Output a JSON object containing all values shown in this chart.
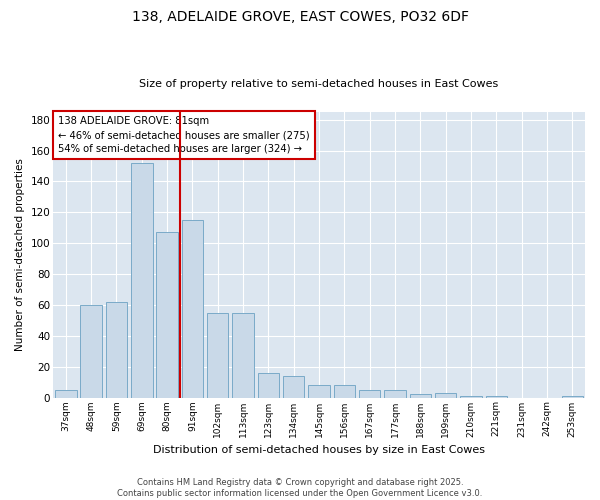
{
  "title": "138, ADELAIDE GROVE, EAST COWES, PO32 6DF",
  "subtitle": "Size of property relative to semi-detached houses in East Cowes",
  "xlabel": "Distribution of semi-detached houses by size in East Cowes",
  "ylabel": "Number of semi-detached properties",
  "categories": [
    "37sqm",
    "48sqm",
    "59sqm",
    "69sqm",
    "80sqm",
    "91sqm",
    "102sqm",
    "113sqm",
    "123sqm",
    "134sqm",
    "145sqm",
    "156sqm",
    "167sqm",
    "177sqm",
    "188sqm",
    "199sqm",
    "210sqm",
    "221sqm",
    "231sqm",
    "242sqm",
    "253sqm"
  ],
  "values": [
    5,
    60,
    62,
    152,
    107,
    115,
    55,
    55,
    16,
    14,
    8,
    8,
    5,
    5,
    2,
    3,
    1,
    1,
    0,
    0,
    1
  ],
  "bar_color": "#c9d9e8",
  "bar_edge_color": "#7aaac8",
  "vline_pos": 4.5,
  "vline_color": "#cc0000",
  "annotation_title": "138 ADELAIDE GROVE: 81sqm",
  "annotation_line2": "← 46% of semi-detached houses are smaller (275)",
  "annotation_line3": "54% of semi-detached houses are larger (324) →",
  "annotation_box_color": "#cc0000",
  "ylim": [
    0,
    185
  ],
  "yticks": [
    0,
    20,
    40,
    60,
    80,
    100,
    120,
    140,
    160,
    180
  ],
  "bg_color": "#dce6f0",
  "footer_line1": "Contains HM Land Registry data © Crown copyright and database right 2025.",
  "footer_line2": "Contains public sector information licensed under the Open Government Licence v3.0."
}
